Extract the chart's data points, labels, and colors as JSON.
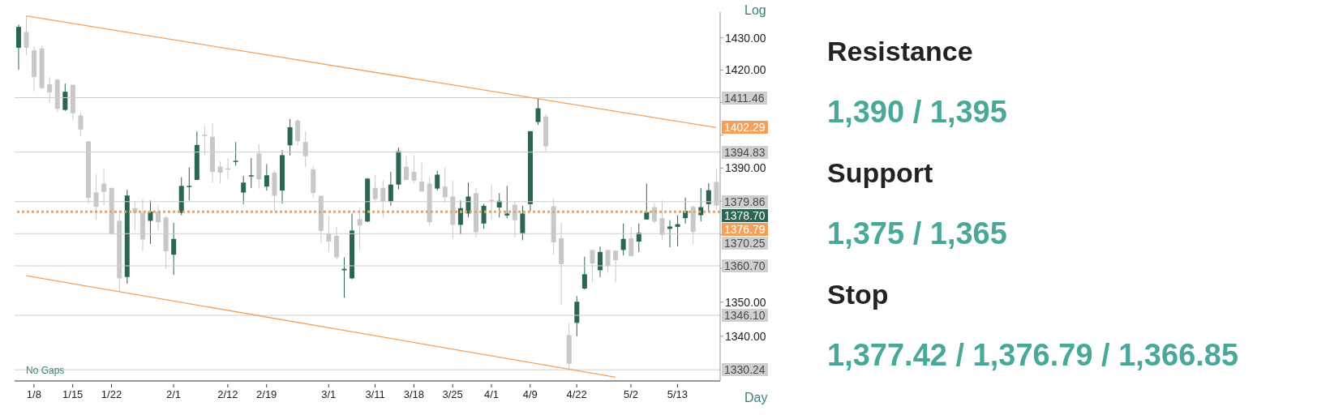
{
  "chart_data": [
    {
      "type": "candlestick",
      "categories": [
        null,
        null,
        "1/8",
        null,
        null,
        null,
        null,
        "1/15",
        null,
        null,
        null,
        null,
        "1/22",
        null,
        null,
        null,
        null,
        null,
        null,
        null,
        "2/1",
        null,
        null,
        null,
        null,
        null,
        null,
        "2/12",
        null,
        null,
        null,
        null,
        "2/19",
        null,
        null,
        null,
        null,
        null,
        null,
        null,
        "3/1",
        null,
        null,
        null,
        null,
        null,
        "3/11",
        null,
        null,
        null,
        null,
        "3/18",
        null,
        null,
        null,
        null,
        "3/25",
        null,
        null,
        null,
        null,
        "4/1",
        null,
        null,
        null,
        null,
        "4/9",
        null,
        null,
        null,
        null,
        null,
        "4/22",
        null,
        null,
        null,
        null,
        null,
        null,
        "5/2",
        null,
        null,
        null,
        null,
        null,
        "5/13",
        null,
        null,
        null,
        null,
        null
      ],
      "ohlc": [
        [
          1426.9,
          1434.1,
          1420.1,
          1433.4
        ],
        [
          1431.8,
          1436.8,
          1424.7,
          1426.9
        ],
        [
          1426.1,
          1427.3,
          1413.4,
          1417.8
        ],
        [
          1426.7,
          1427.7,
          1414.0,
          1414.4
        ],
        [
          1415.6,
          1417.8,
          1409.9,
          1413.1
        ],
        [
          1417.0,
          1417.3,
          1407.1,
          1408.0
        ],
        [
          1407.7,
          1415.8,
          1407.4,
          1413.3
        ],
        [
          1415.4,
          1415.6,
          1404.5,
          1406.7
        ],
        [
          1406.0,
          1406.9,
          1399.7,
          1401.7
        ],
        [
          1398.1,
          1398.2,
          1379.3,
          1381.0
        ],
        [
          1382.6,
          1388.2,
          1374.5,
          1378.3
        ],
        [
          1385.3,
          1389.9,
          1378.7,
          1382.8
        ],
        [
          1384.0,
          1384.0,
          1369.7,
          1370.3
        ],
        [
          1374.1,
          1376.3,
          1352.9,
          1357.0
        ],
        [
          1357.4,
          1383.4,
          1355.4,
          1381.7
        ],
        [
          1377.9,
          1379.9,
          1371.3,
          1376.5
        ],
        [
          1376.5,
          1380.6,
          1365.0,
          1368.5
        ],
        [
          1374.1,
          1380.2,
          1367.2,
          1376.9
        ],
        [
          1376.9,
          1378.9,
          1371.2,
          1373.7
        ],
        [
          1375.1,
          1375.5,
          1359.8,
          1365.0
        ],
        [
          1364.0,
          1373.5,
          1358.0,
          1368.7
        ],
        [
          1376.5,
          1387.2,
          1375.8,
          1384.6
        ],
        [
          1384.3,
          1390.2,
          1380.3,
          1384.6
        ],
        [
          1386.4,
          1401.1,
          1386.4,
          1397.0
        ],
        [
          1400.1,
          1402.7,
          1394.0,
          1399.9
        ],
        [
          1399.5,
          1403.7,
          1385.6,
          1388.8
        ],
        [
          1390.4,
          1392.0,
          1385.4,
          1388.6
        ],
        [
          1389.9,
          1393.0,
          1386.6,
          1389.7
        ],
        [
          1392.0,
          1397.9,
          1390.7,
          1392.2
        ],
        [
          1382.6,
          1387.6,
          1379.1,
          1385.6
        ],
        [
          1387.6,
          1393.0,
          1384.0,
          1387.8
        ],
        [
          1394.4,
          1397.3,
          1383.8,
          1386.6
        ],
        [
          1384.4,
          1391.2,
          1383.2,
          1387.8
        ],
        [
          1388.6,
          1389.2,
          1377.1,
          1381.6
        ],
        [
          1383.2,
          1395.4,
          1379.3,
          1393.9
        ],
        [
          1396.9,
          1404.9,
          1393.8,
          1402.4
        ],
        [
          1404.4,
          1404.9,
          1396.9,
          1398.2
        ],
        [
          1397.9,
          1401.1,
          1390.3,
          1393.6
        ],
        [
          1389.6,
          1390.6,
          1381.2,
          1382.5
        ],
        [
          1381.6,
          1381.6,
          1367.6,
          1371.1
        ],
        [
          1370.3,
          1375.5,
          1364.8,
          1367.9
        ],
        [
          1369.6,
          1372.3,
          1362.6,
          1363.2
        ],
        [
          1359.4,
          1363.2,
          1351.3,
          1359.8
        ],
        [
          1357.0,
          1376.3,
          1356.7,
          1371.2
        ],
        [
          1374.6,
          1378.2,
          1365.4,
          1372.7
        ],
        [
          1373.9,
          1387.0,
          1373.7,
          1386.8
        ],
        [
          1384.0,
          1388.0,
          1379.9,
          1380.6
        ],
        [
          1384.0,
          1386.2,
          1375.1,
          1379.9
        ],
        [
          1379.9,
          1388.8,
          1378.7,
          1385.0
        ],
        [
          1385.0,
          1396.2,
          1383.6,
          1395.1
        ],
        [
          1390.4,
          1393.6,
          1386.4,
          1386.4
        ],
        [
          1388.8,
          1393.9,
          1385.4,
          1386.2
        ],
        [
          1385.9,
          1391.6,
          1382.9,
          1382.9
        ],
        [
          1385.3,
          1387.2,
          1372.7,
          1373.7
        ],
        [
          1383.8,
          1389.2,
          1383.2,
          1388.0
        ],
        [
          1384.4,
          1390.2,
          1379.5,
          1381.2
        ],
        [
          1381.4,
          1386.2,
          1368.8,
          1372.9
        ],
        [
          1372.9,
          1380.2,
          1370.0,
          1377.9
        ],
        [
          1376.3,
          1385.6,
          1375.1,
          1381.4
        ],
        [
          1382.4,
          1384.0,
          1369.2,
          1370.7
        ],
        [
          1373.3,
          1379.2,
          1371.7,
          1378.6
        ],
        [
          1380.4,
          1385.0,
          1374.5,
          1380.3
        ],
        [
          1378.1,
          1382.4,
          1375.1,
          1380.1
        ],
        [
          1375.7,
          1384.6,
          1374.9,
          1376.3
        ],
        [
          1378.9,
          1379.8,
          1369.2,
          1374.3
        ],
        [
          1370.4,
          1378.6,
          1368.3,
          1376.3
        ],
        [
          1379.1,
          1401.2,
          1377.1,
          1401.2
        ],
        [
          1404.0,
          1411.46,
          1403.1,
          1408.2
        ],
        [
          1405.7,
          1406.5,
          1394.83,
          1396.6
        ],
        [
          1378.5,
          1380.8,
          1364.0,
          1367.7
        ],
        [
          1368.9,
          1373.5,
          1349.3,
          1361.2
        ],
        [
          1340.3,
          1343.8,
          1330.24,
          1332.0
        ],
        [
          1343.9,
          1351.7,
          1340.0,
          1350.1
        ],
        [
          1354.0,
          1363.4,
          1353.7,
          1358.2
        ],
        [
          1365.4,
          1365.4,
          1355.8,
          1361.4
        ],
        [
          1359.4,
          1366.4,
          1357.4,
          1364.8
        ],
        [
          1365.4,
          1365.4,
          1358.6,
          1360.6
        ],
        [
          1365.2,
          1365.4,
          1355.8,
          1362.4
        ],
        [
          1365.4,
          1373.3,
          1363.8,
          1368.7
        ],
        [
          1368.9,
          1372.3,
          1363.4,
          1363.6
        ],
        [
          1367.9,
          1373.3,
          1364.8,
          1370.5
        ],
        [
          1374.5,
          1385.3,
          1374.5,
          1376.7
        ],
        [
          1378.2,
          1379.5,
          1373.3,
          1373.9
        ],
        [
          1374.9,
          1380.2,
          1368.4,
          1369.9
        ],
        [
          1371.7,
          1374.3,
          1366.2,
          1372.4
        ],
        [
          1372.3,
          1375.8,
          1366.5,
          1373.1
        ],
        [
          1374.9,
          1381.1,
          1373.3,
          1377.1
        ],
        [
          1378.3,
          1378.7,
          1367.2,
          1370.8
        ],
        [
          1375.8,
          1384.0,
          1373.9,
          1378.2
        ],
        [
          1379.1,
          1385.4,
          1377.1,
          1383.3
        ],
        [
          1385.8,
          1389.8,
          1377.5,
          1378.7
        ]
      ],
      "colors": [
        "#2b6652",
        "#c8c8c8",
        "#c8c8c8",
        "#c8c8c8",
        "#c8c8c8",
        "#c8c8c8",
        "#2b6652",
        "#c8c8c8",
        "#c8c8c8",
        "#c8c8c8",
        "#c8c8c8",
        "#c8c8c8",
        "#c8c8c8",
        "#c8c8c8",
        "#2b6652",
        "#c8c8c8",
        "#c8c8c8",
        "#2b6652",
        "#c8c8c8",
        "#c8c8c8",
        "#2b6652",
        "#2b6652",
        "#2b6652",
        "#2b6652",
        "#c8c8c8",
        "#c8c8c8",
        "#c8c8c8",
        "#c8c8c8",
        "#2b6652",
        "#2b6652",
        "#2b6652",
        "#c8c8c8",
        "#2b6652",
        "#c8c8c8",
        "#2b6652",
        "#2b6652",
        "#c8c8c8",
        "#c8c8c8",
        "#c8c8c8",
        "#c8c8c8",
        "#c8c8c8",
        "#c8c8c8",
        "#2b6652",
        "#2b6652",
        "#c8c8c8",
        "#2b6652",
        "#c8c8c8",
        "#c8c8c8",
        "#2b6652",
        "#2b6652",
        "#c8c8c8",
        "#c8c8c8",
        "#c8c8c8",
        "#c8c8c8",
        "#2b6652",
        "#c8c8c8",
        "#c8c8c8",
        "#2b6652",
        "#2b6652",
        "#c8c8c8",
        "#2b6652",
        "#c8c8c8",
        "#2b6652",
        "#2b6652",
        "#c8c8c8",
        "#2b6652",
        "#2b6652",
        "#2b6652",
        "#c8c8c8",
        "#c8c8c8",
        "#c8c8c8",
        "#c8c8c8",
        "#2b6652",
        "#2b6652",
        "#c8c8c8",
        "#2b6652",
        "#c8c8c8",
        "#c8c8c8",
        "#2b6652",
        "#c8c8c8",
        "#2b6652",
        "#2b6652",
        "#c8c8c8",
        "#c8c8c8",
        "#2b6652",
        "#2b6652",
        "#2b6652",
        "#c8c8c8",
        "#2b6652",
        "#2b6652",
        "#c8c8c8"
      ],
      "series": [
        {
          "type": "line",
          "color": "#f5a05a",
          "values": [
            null,
            1436.8,
            null,
            null,
            null,
            null,
            null,
            null,
            null,
            null,
            null,
            null,
            null,
            null,
            null,
            null,
            null,
            null,
            null,
            null,
            null,
            null,
            null,
            null,
            null,
            null,
            null,
            null,
            null,
            null,
            null,
            null,
            null,
            null,
            null,
            null,
            null,
            null,
            null,
            null,
            null,
            null,
            null,
            null,
            null,
            null,
            null,
            null,
            null,
            null,
            null,
            null,
            null,
            null,
            null,
            null,
            null,
            null,
            null,
            null,
            null,
            null,
            null,
            null,
            null,
            null,
            null,
            null,
            null,
            null,
            null,
            null,
            null,
            null,
            null,
            null,
            null,
            null,
            null,
            null,
            null,
            null,
            null,
            null,
            null,
            null,
            null,
            null,
            null,
            null,
            1402.29
          ],
          "value_labels": [
            null,
            null,
            null,
            null,
            null,
            null,
            null,
            null,
            null,
            null,
            null,
            null,
            null,
            null,
            null,
            null,
            null,
            null,
            null,
            null,
            null,
            null,
            null,
            null,
            null,
            null,
            null,
            null,
            null,
            null,
            null,
            null,
            null,
            null,
            null,
            null,
            null,
            null,
            null,
            null,
            null,
            null,
            null,
            null,
            null,
            null,
            null,
            null,
            null,
            null,
            null,
            null,
            null,
            null,
            null,
            null,
            null,
            null,
            null,
            null,
            null,
            null,
            null,
            null,
            null,
            null,
            null,
            null,
            null,
            null,
            null,
            null,
            null,
            null,
            null,
            null,
            null,
            null,
            null,
            null,
            null,
            null,
            null,
            null,
            null,
            null,
            null,
            null,
            null,
            null,
            "1402.29"
          ]
        },
        {
          "type": "line",
          "color": "#f5a05a",
          "values": [
            null,
            1357.8,
            null,
            null,
            null,
            null,
            null,
            null,
            null,
            null,
            null,
            null,
            null,
            null,
            null,
            null,
            null,
            null,
            null,
            null,
            null,
            null,
            null,
            null,
            null,
            null,
            null,
            null,
            null,
            null,
            null,
            null,
            null,
            null,
            null,
            null,
            null,
            null,
            null,
            null,
            null,
            null,
            null,
            null,
            null,
            null,
            null,
            null,
            null,
            null,
            null,
            null,
            null,
            null,
            null,
            null,
            null,
            null,
            null,
            null,
            null,
            null,
            null,
            null,
            null,
            null,
            null,
            null,
            null,
            null,
            null,
            null,
            null,
            null,
            null,
            null,
            null,
            1328.1,
            null,
            null,
            null,
            null,
            null,
            null,
            null,
            null,
            null,
            null,
            null,
            null,
            null
          ]
        }
      ],
      "ylim": [
        1327,
        1438
      ],
      "yticks": [
        {
          "value": 1340,
          "label": "1340.00"
        },
        {
          "value": 1350,
          "label": "1350.00"
        },
        {
          "value": 1360,
          "label": null
        },
        {
          "value": 1370,
          "label": null
        },
        {
          "value": 1380,
          "label": null
        },
        {
          "value": 1390,
          "label": "1390.00"
        },
        {
          "value": 1400,
          "label": null
        },
        {
          "value": 1410,
          "label": null
        },
        {
          "value": 1420,
          "label": "1420.00"
        },
        {
          "value": 1430,
          "label": "1430.00"
        }
      ],
      "log": true,
      "ref_lines": [
        {
          "axis": "y",
          "value": 1411.46,
          "label": "1411.46",
          "color": "#cfcfcf"
        },
        {
          "axis": "y",
          "value": 1394.83,
          "label": "1394.83",
          "color": "#cfcfcf"
        },
        {
          "axis": "y",
          "value": 1379.86,
          "label": "1379.86",
          "color": "#cfcfcf"
        },
        {
          "axis": "y",
          "value": 1376.79,
          "label": "1376.79",
          "color": "#f5a05a",
          "line_style": "dotted"
        },
        {
          "axis": "y",
          "value": 1370.25,
          "label": "1370.25",
          "color": "#cfcfcf"
        },
        {
          "axis": "y",
          "value": 1360.7,
          "label": "1360.70",
          "color": "#cfcfcf"
        },
        {
          "axis": "y",
          "value": 1346.1,
          "label": "1346.10",
          "color": "#cfcfcf"
        },
        {
          "axis": "y",
          "value": 1330.24,
          "label": "1330.24",
          "color": "#cfcfcf"
        }
      ],
      "annotations": [
        "No Gaps",
        "Log",
        "Day",
        "1378.70"
      ]
    },
    {
      "type": "other",
      "annotations": [
        "Resistance",
        "1,390 / 1,395",
        "Support",
        "1,375 / 1,365",
        "Stop",
        "1,377.42 / 1,376.79 / 1,366.85"
      ]
    }
  ]
}
